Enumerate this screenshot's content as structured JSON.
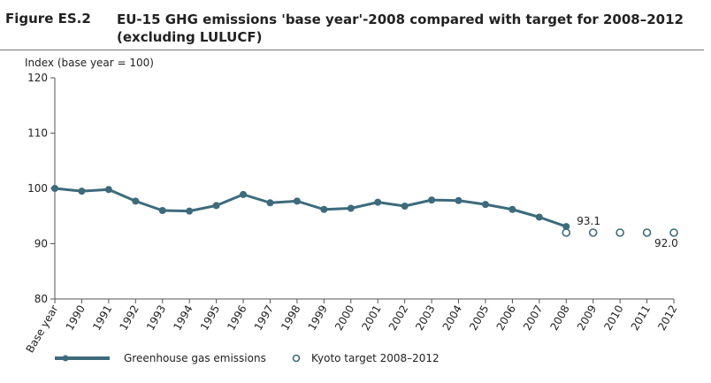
{
  "figure": {
    "label": "Figure ES.2",
    "title": "EU-15 GHG emissions 'base year'-2008 compared with target for 2008–2012 (excluding LULUCF)"
  },
  "colors": {
    "series": "#3d6b7c",
    "axis": "#555555",
    "text": "#222222"
  },
  "chart_data": {
    "type": "line",
    "ylabel": "Index (base year = 100)",
    "xlabel": "",
    "ylim": [
      80,
      120
    ],
    "yticks": [
      80,
      90,
      100,
      110,
      120
    ],
    "grid": false,
    "legend_position": "bottom",
    "categories": [
      "Base year",
      "1990",
      "1991",
      "1992",
      "1993",
      "1994",
      "1995",
      "1996",
      "1997",
      "1998",
      "1999",
      "2000",
      "2001",
      "2002",
      "2003",
      "2004",
      "2005",
      "2006",
      "2007",
      "2008",
      "2009",
      "2010",
      "2011",
      "2012"
    ],
    "series": [
      {
        "name": "Greenhouse gas emissions",
        "style": "line-marker",
        "x": [
          "Base year",
          "1990",
          "1991",
          "1992",
          "1993",
          "1994",
          "1995",
          "1996",
          "1997",
          "1998",
          "1999",
          "2000",
          "2001",
          "2002",
          "2003",
          "2004",
          "2005",
          "2006",
          "2007",
          "2008"
        ],
        "values": [
          100.0,
          99.5,
          99.8,
          97.7,
          96.0,
          95.9,
          96.9,
          98.9,
          97.4,
          97.7,
          96.2,
          96.4,
          97.5,
          96.8,
          97.9,
          97.8,
          97.1,
          96.2,
          94.8,
          93.1
        ]
      },
      {
        "name": "Kyoto target 2008–2012",
        "style": "open-circle",
        "x": [
          "2008",
          "2009",
          "2010",
          "2011",
          "2012"
        ],
        "values": [
          92.0,
          92.0,
          92.0,
          92.0,
          92.0
        ]
      }
    ],
    "annotations": [
      {
        "text": "93.1",
        "x": "2008",
        "y": 93.1
      },
      {
        "text": "92.0",
        "x": "2012",
        "y": 92.0
      }
    ]
  }
}
